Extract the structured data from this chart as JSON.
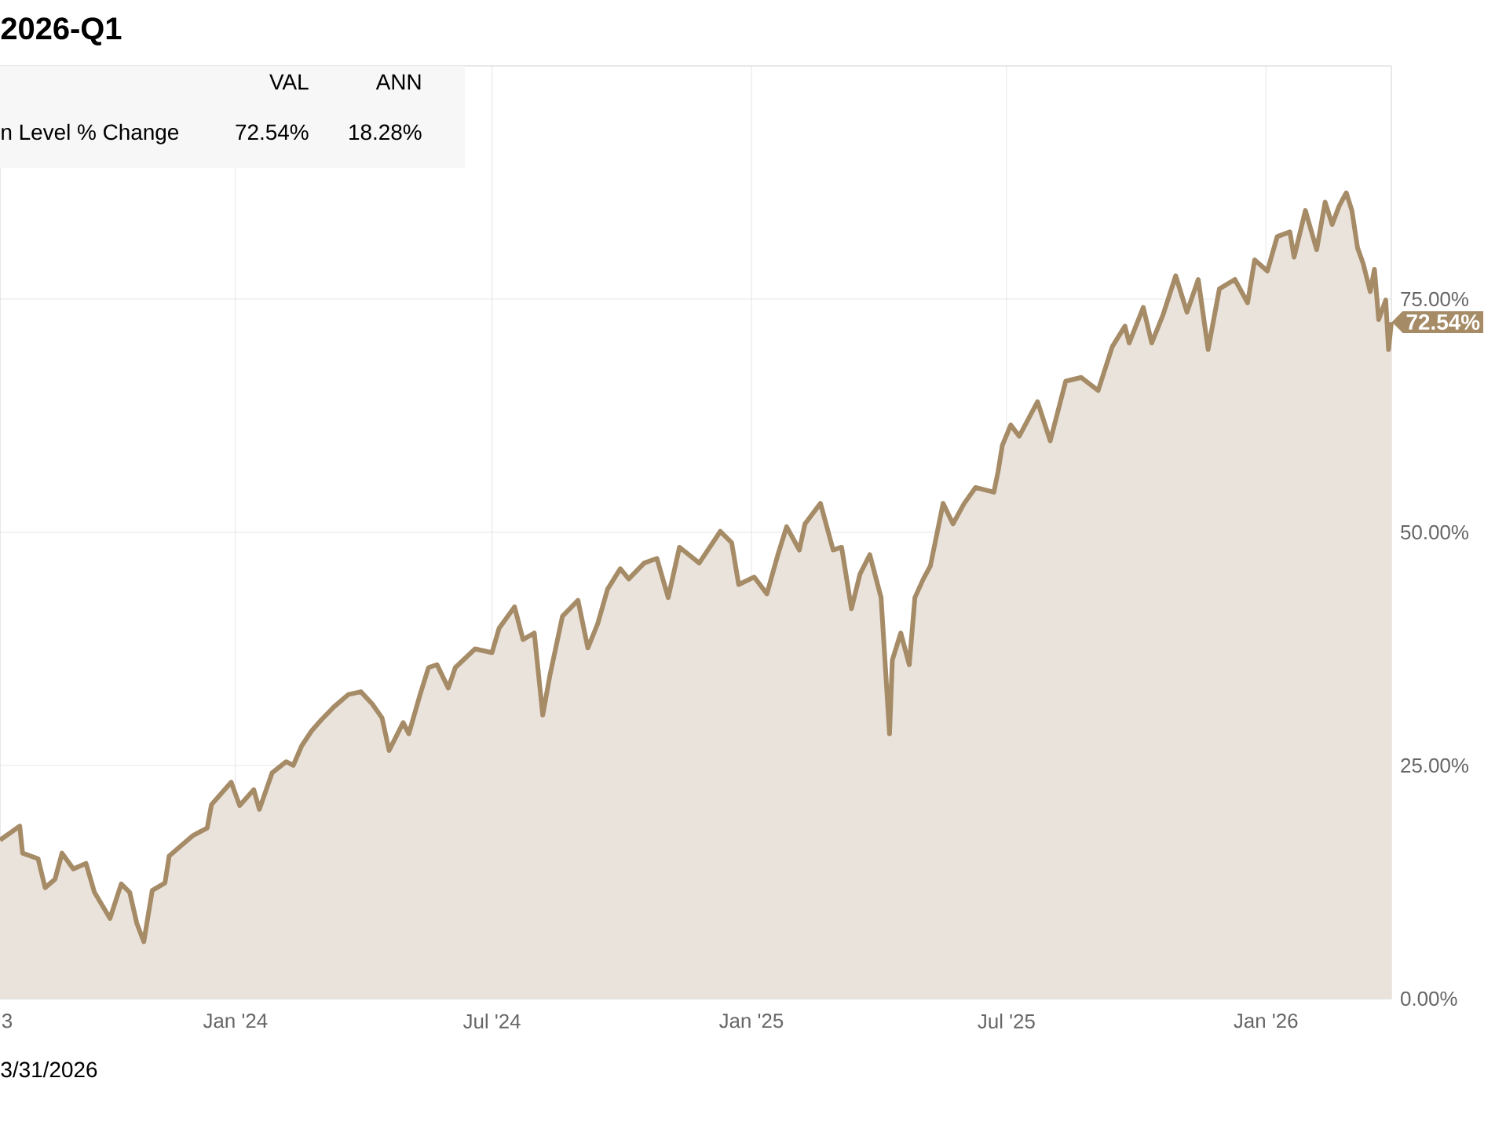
{
  "chart_data": {
    "type": "area",
    "title": "2026-Q1",
    "x": [
      "2023-07-18",
      "2023-08-01",
      "2023-08-03",
      "2023-08-14",
      "2023-08-19",
      "2023-08-26",
      "2023-08-31",
      "2023-09-08",
      "2023-09-17",
      "2023-09-23",
      "2023-10-04",
      "2023-10-12",
      "2023-10-18",
      "2023-10-23",
      "2023-10-28",
      "2023-11-03",
      "2023-11-12",
      "2023-11-15",
      "2023-11-25",
      "2023-12-02",
      "2023-12-12",
      "2023-12-15",
      "2023-12-29",
      "2024-01-04",
      "2024-01-14",
      "2024-01-18",
      "2024-01-27",
      "2024-02-06",
      "2024-02-11",
      "2024-02-17",
      "2024-02-24",
      "2024-03-02",
      "2024-03-11",
      "2024-03-21",
      "2024-03-30",
      "2024-04-07",
      "2024-04-14",
      "2024-04-19",
      "2024-04-29",
      "2024-05-03",
      "2024-05-11",
      "2024-05-17",
      "2024-05-23",
      "2024-05-31",
      "2024-06-05",
      "2024-06-19",
      "2024-07-01",
      "2024-07-06",
      "2024-07-17",
      "2024-07-23",
      "2024-07-31",
      "2024-08-06",
      "2024-08-11",
      "2024-08-20",
      "2024-08-31",
      "2024-09-07",
      "2024-09-14",
      "2024-09-21",
      "2024-09-30",
      "2024-10-06",
      "2024-10-17",
      "2024-10-26",
      "2024-11-03",
      "2024-11-11",
      "2024-11-25",
      "2024-12-10",
      "2024-12-18",
      "2024-12-23",
      "2025-01-03",
      "2025-01-12",
      "2025-01-20",
      "2025-01-26",
      "2025-02-04",
      "2025-02-08",
      "2025-02-19",
      "2025-02-28",
      "2025-03-06",
      "2025-03-13",
      "2025-03-19",
      "2025-03-26",
      "2025-04-03",
      "2025-04-09",
      "2025-04-11",
      "2025-04-17",
      "2025-04-23",
      "2025-04-27",
      "2025-05-03",
      "2025-05-08",
      "2025-05-17",
      "2025-05-24",
      "2025-06-01",
      "2025-06-09",
      "2025-06-22",
      "2025-06-25",
      "2025-06-28",
      "2025-07-04",
      "2025-07-10",
      "2025-07-23",
      "2025-08-01",
      "2025-08-12",
      "2025-08-23",
      "2025-09-04",
      "2025-09-14",
      "2025-09-23",
      "2025-09-26",
      "2025-10-06",
      "2025-10-12",
      "2025-10-20",
      "2025-10-29",
      "2025-11-06",
      "2025-11-14",
      "2025-11-21",
      "2025-11-29",
      "2025-12-10",
      "2025-12-19",
      "2025-12-24",
      "2026-01-02",
      "2026-01-09",
      "2026-01-18",
      "2026-01-21",
      "2026-01-29",
      "2026-02-06",
      "2026-02-12",
      "2026-02-17",
      "2026-02-22",
      "2026-02-27",
      "2026-03-03",
      "2026-03-07",
      "2026-03-11",
      "2026-03-16",
      "2026-03-19",
      "2026-03-22",
      "2026-03-27",
      "2026-03-29",
      "2026-03-31"
    ],
    "series": [
      {
        "name": "n Level % Change",
        "color": "#a68b67",
        "values": [
          17.0,
          18.5,
          15.6,
          15.0,
          11.9,
          12.8,
          15.6,
          13.9,
          14.5,
          11.4,
          8.6,
          12.3,
          11.4,
          8.1,
          6.1,
          11.6,
          12.4,
          15.3,
          16.6,
          17.5,
          18.3,
          20.8,
          23.2,
          20.7,
          22.4,
          20.3,
          24.2,
          25.4,
          25.0,
          27.1,
          28.7,
          29.9,
          31.3,
          32.6,
          32.9,
          31.6,
          30.1,
          26.6,
          29.6,
          28.4,
          32.6,
          35.5,
          35.8,
          33.3,
          35.5,
          37.5,
          37.1,
          39.7,
          42.0,
          38.5,
          39.2,
          30.4,
          34.6,
          41.0,
          42.7,
          37.6,
          40.2,
          43.9,
          46.1,
          45.0,
          46.7,
          47.2,
          43.0,
          48.4,
          46.7,
          50.1,
          48.9,
          44.4,
          45.2,
          43.4,
          47.7,
          50.6,
          48.1,
          50.9,
          53.1,
          48.1,
          48.4,
          41.8,
          45.5,
          47.6,
          43.0,
          28.4,
          36.3,
          39.2,
          35.8,
          43.0,
          45.0,
          46.4,
          53.1,
          50.9,
          53.1,
          54.8,
          54.3,
          56.5,
          59.3,
          61.5,
          60.3,
          64.0,
          59.8,
          66.2,
          66.6,
          65.2,
          69.9,
          72.1,
          70.3,
          74.1,
          70.3,
          73.3,
          77.5,
          73.6,
          77.1,
          69.6,
          76.1,
          77.1,
          74.6,
          79.2,
          78.0,
          81.7,
          82.2,
          79.5,
          84.5,
          80.3,
          85.4,
          83.0,
          85.0,
          86.4,
          84.5,
          80.5,
          78.8,
          75.8,
          78.2,
          72.8,
          74.9,
          69.6,
          72.54
        ]
      }
    ],
    "xlim": [
      "2023-07-18",
      "2026-03-31"
    ],
    "xticks": [
      {
        "value": "2023-07-23",
        "label": "3"
      },
      {
        "value": "2024-01-01",
        "label": "Jan '24"
      },
      {
        "value": "2024-07-01",
        "label": "Jul '24"
      },
      {
        "value": "2025-01-01",
        "label": "Jan '25"
      },
      {
        "value": "2025-07-01",
        "label": "Jul '25"
      },
      {
        "value": "2026-01-01",
        "label": "Jan '26"
      }
    ],
    "ylim": [
      0,
      100
    ],
    "yticks": [
      {
        "value": 0,
        "label": "0.00%"
      },
      {
        "value": 25,
        "label": "25.00%"
      },
      {
        "value": 50,
        "label": "50.00%"
      },
      {
        "value": 75,
        "label": "75.00%"
      }
    ],
    "grid": true,
    "legend": "top left",
    "annotations": [
      "3/31/2026",
      "VAL",
      "ANN",
      "72.54%",
      "18.28%",
      {
        "text": "72.54%",
        "x": "2026-03-31",
        "y": 72.54
      }
    ]
  }
}
